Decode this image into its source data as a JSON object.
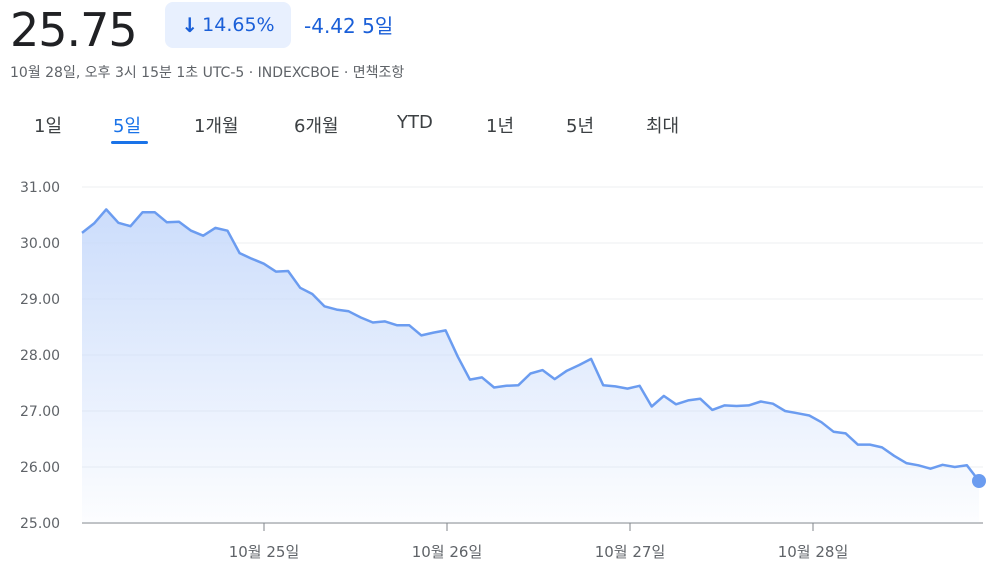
{
  "quote": {
    "price": "25.75",
    "change_percent": "14.65%",
    "change_direction_icon": "arrow-down-icon",
    "change_abs": "-4.42",
    "period": "5일",
    "meta": "10월 28일, 오후 3시 15분 1초 UTC-5 · INDEXCBOE · 면책조항"
  },
  "tabs": [
    {
      "label": "1일",
      "active": false
    },
    {
      "label": "5일",
      "active": true
    },
    {
      "label": "1개월",
      "active": false
    },
    {
      "label": "6개월",
      "active": false
    },
    {
      "label": "YTD",
      "active": false
    },
    {
      "label": "1년",
      "active": false
    },
    {
      "label": "5년",
      "active": false
    },
    {
      "label": "최대",
      "active": false
    }
  ],
  "colors": {
    "line": "#6b9cf0",
    "fill_top": "#c9dbfb",
    "accent": "#1a73e8",
    "grid": "#eceff1"
  },
  "chart_data": {
    "type": "area",
    "title": "",
    "xlabel": "",
    "ylabel": "",
    "ylim": [
      25.0,
      31.0
    ],
    "y_ticks": [
      "31.00",
      "30.00",
      "29.00",
      "28.00",
      "27.00",
      "26.00",
      "25.00"
    ],
    "x_ticks": [
      "10월 25일",
      "10월 26일",
      "10월 27일",
      "10월 28일"
    ],
    "grid": "horizontal",
    "series": [
      {
        "values": [
          30.18,
          30.35,
          30.6,
          30.36,
          30.3,
          30.55,
          30.55,
          30.37,
          30.38,
          30.22,
          30.13,
          30.27,
          30.22,
          29.82,
          29.72,
          29.63,
          29.49,
          29.5,
          29.2,
          29.09,
          28.87,
          28.81,
          28.78,
          28.67,
          28.58,
          28.6,
          28.53,
          28.53,
          28.35,
          28.4,
          28.44,
          27.97,
          27.56,
          27.6,
          27.42,
          27.45,
          27.46,
          27.67,
          27.73,
          27.57,
          27.72,
          27.82,
          27.93,
          27.46,
          27.44,
          27.4,
          27.45,
          27.08,
          27.27,
          27.12,
          27.19,
          27.22,
          27.02,
          27.1,
          27.09,
          27.1,
          27.17,
          27.13,
          27.0,
          26.96,
          26.92,
          26.8,
          26.63,
          26.6,
          26.4,
          26.4,
          26.35,
          26.2,
          26.07,
          26.03,
          25.97,
          26.04,
          26.0,
          26.03,
          25.75
        ]
      }
    ]
  }
}
